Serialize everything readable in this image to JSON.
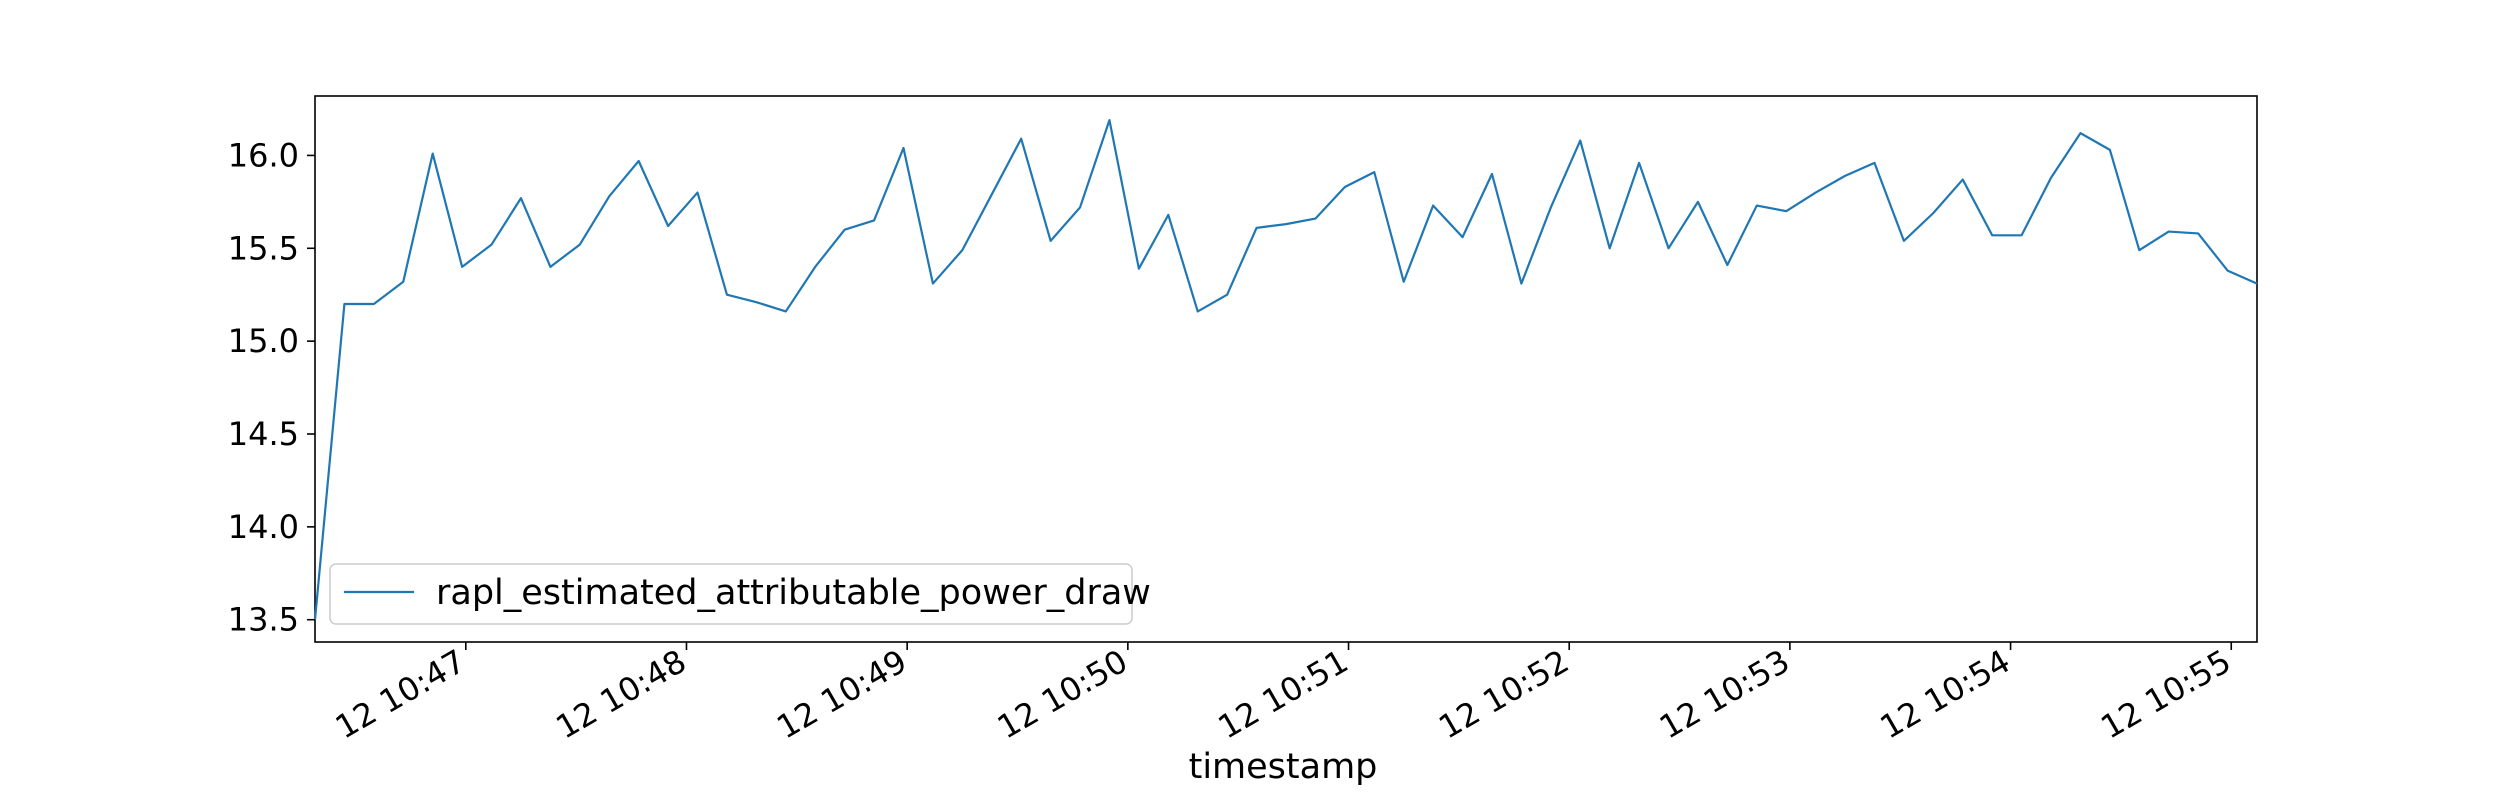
{
  "chart_data": {
    "type": "line",
    "xlabel": "timestamp",
    "ylabel": "",
    "x_tick_labels": [
      "12 10:47",
      "12 10:48",
      "12 10:49",
      "12 10:50",
      "12 10:51",
      "12 10:52",
      "12 10:53",
      "12 10:54",
      "12 10:55"
    ],
    "y_ticks": [
      13.5,
      14.0,
      14.5,
      15.0,
      15.5,
      16.0
    ],
    "ylim": [
      13.38,
      16.32
    ],
    "grid": false,
    "legend_position": "lower-left",
    "series": [
      {
        "name": "rapl_estimated_attributable_power_draw",
        "color": "#1f77b4",
        "x": [
          "10:46:19",
          "10:46:27",
          "10:46:35",
          "10:46:43",
          "10:46:51",
          "10:46:59",
          "10:47:07",
          "10:47:15",
          "10:47:23",
          "10:47:31",
          "10:47:39",
          "10:47:47",
          "10:47:55",
          "10:48:03",
          "10:48:11",
          "10:48:19",
          "10:48:27",
          "10:48:35",
          "10:48:43",
          "10:48:51",
          "10:48:59",
          "10:49:07",
          "10:49:15",
          "10:49:23",
          "10:49:31",
          "10:49:39",
          "10:49:47",
          "10:49:55",
          "10:50:03",
          "10:50:11",
          "10:50:19",
          "10:50:27",
          "10:50:35",
          "10:50:43",
          "10:50:51",
          "10:50:59",
          "10:51:07",
          "10:51:15",
          "10:51:23",
          "10:51:31",
          "10:51:39",
          "10:51:47",
          "10:51:55",
          "10:52:03",
          "10:52:11",
          "10:52:19",
          "10:52:27",
          "10:52:35",
          "10:52:43",
          "10:52:51",
          "10:52:59",
          "10:53:07",
          "10:53:15",
          "10:53:23",
          "10:53:31",
          "10:53:39",
          "10:53:47",
          "10:53:55",
          "10:54:03",
          "10:54:11",
          "10:54:19",
          "10:54:27",
          "10:54:35",
          "10:54:43",
          "10:54:51",
          "10:54:59",
          "10:55:07"
        ],
        "values": [
          13.5,
          15.2,
          15.2,
          15.32,
          16.01,
          15.4,
          15.52,
          15.77,
          15.4,
          15.52,
          15.78,
          15.97,
          15.62,
          15.8,
          15.25,
          15.21,
          15.16,
          15.4,
          15.6,
          15.65,
          16.04,
          15.31,
          15.49,
          15.79,
          16.09,
          15.54,
          15.72,
          16.19,
          15.39,
          15.68,
          15.16,
          15.25,
          15.61,
          15.63,
          15.66,
          15.83,
          15.91,
          15.32,
          15.73,
          15.56,
          15.9,
          15.31,
          15.72,
          16.08,
          15.5,
          15.96,
          15.5,
          15.75,
          15.41,
          15.73,
          15.7,
          15.8,
          15.89,
          15.96,
          15.54,
          15.69,
          15.87,
          15.57,
          15.57,
          15.88,
          16.12,
          16.03,
          15.49,
          15.59,
          15.58,
          15.38,
          15.31
        ]
      }
    ]
  }
}
